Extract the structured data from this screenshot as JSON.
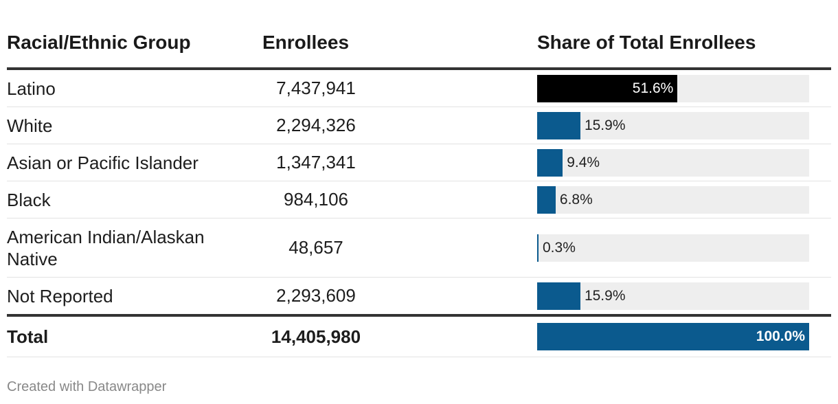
{
  "chart_data": {
    "type": "table",
    "columns": [
      "Racial/Ethnic Group",
      "Enrollees",
      "Share of Total Enrollees"
    ],
    "rows": [
      {
        "group": "Latino",
        "enrollees": "7,437,941",
        "share": 51.6,
        "share_label": "51.6%",
        "highlight": true
      },
      {
        "group": "White",
        "enrollees": "2,294,326",
        "share": 15.9,
        "share_label": "15.9%",
        "highlight": false
      },
      {
        "group": "Asian or Pacific Islander",
        "enrollees": "1,347,341",
        "share": 9.4,
        "share_label": "9.4%",
        "highlight": false
      },
      {
        "group": "Black",
        "enrollees": "984,106",
        "share": 6.8,
        "share_label": "6.8%",
        "highlight": false
      },
      {
        "group": "American Indian/Alaskan Native",
        "enrollees": "48,657",
        "share": 0.3,
        "share_label": "0.3%",
        "highlight": false
      },
      {
        "group": "Not Reported",
        "enrollees": "2,293,609",
        "share": 15.9,
        "share_label": "15.9%",
        "highlight": false
      }
    ],
    "total": {
      "group": "Total",
      "enrollees": "14,405,980",
      "share": 100.0,
      "share_label": "100.0%"
    }
  },
  "footer": {
    "credit": "Created with Datawrapper"
  },
  "colors": {
    "bar": "#0b5a8e",
    "highlight_bar": "#000000",
    "bar_background": "#eeeeee"
  }
}
